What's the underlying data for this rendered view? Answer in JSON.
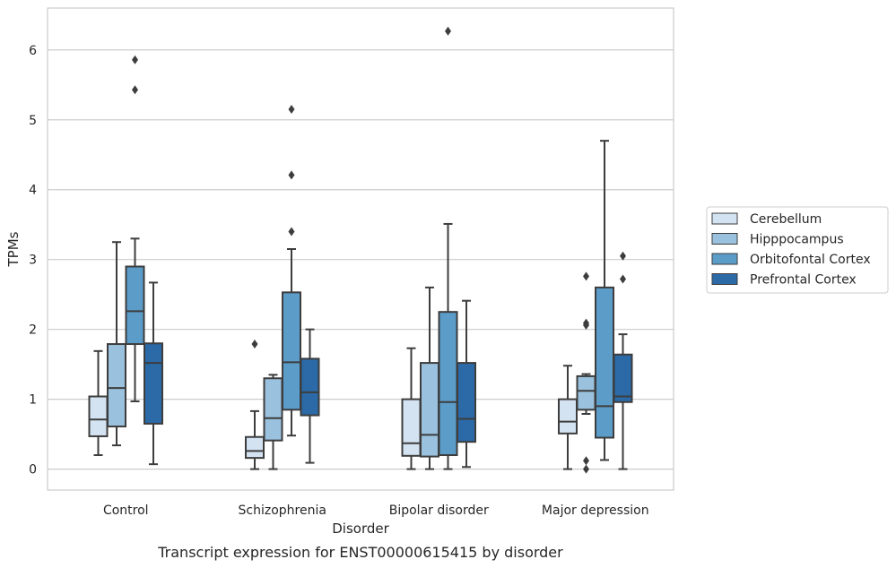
{
  "caption": "Transcript expression for ENST00000615415 by disorder",
  "chart_data": {
    "type": "box",
    "xlabel": "Disorder",
    "ylabel": "TPMs",
    "ylim": [
      -0.3,
      6.6
    ],
    "yticks": [
      0,
      1,
      2,
      3,
      4,
      5,
      6
    ],
    "grid": "horizontal",
    "legend_position": "right",
    "categories": [
      "Control",
      "Schizophrenia",
      "Bipolar disorder",
      "Major depression"
    ],
    "series": [
      {
        "name": "Cerebellum",
        "color": "#d4e3f2",
        "boxes": [
          {
            "min": 0.2,
            "q1": 0.47,
            "median": 0.71,
            "q3": 1.04,
            "max": 1.69,
            "outliers": []
          },
          {
            "min": 0.0,
            "q1": 0.16,
            "median": 0.26,
            "q3": 0.46,
            "max": 0.83,
            "outliers": [
              1.79
            ]
          },
          {
            "min": 0.0,
            "q1": 0.19,
            "median": 0.37,
            "q3": 1.0,
            "max": 1.73,
            "outliers": []
          },
          {
            "min": 0.0,
            "q1": 0.51,
            "median": 0.68,
            "q3": 1.0,
            "max": 1.48,
            "outliers": []
          }
        ]
      },
      {
        "name": "Hipppocampus",
        "color": "#9ac1dd",
        "boxes": [
          {
            "min": 0.34,
            "q1": 0.61,
            "median": 1.16,
            "q3": 1.79,
            "max": 3.25,
            "outliers": []
          },
          {
            "min": 0.0,
            "q1": 0.41,
            "median": 0.73,
            "q3": 1.3,
            "max": 1.35,
            "outliers": []
          },
          {
            "min": 0.0,
            "q1": 0.18,
            "median": 0.49,
            "q3": 1.52,
            "max": 2.6,
            "outliers": []
          },
          {
            "min": 0.79,
            "q1": 0.85,
            "median": 1.12,
            "q3": 1.33,
            "max": 1.36,
            "outliers": [
              2.76,
              2.09,
              2.06,
              0.12,
              0.0
            ]
          }
        ]
      },
      {
        "name": "Orbitofontal Cortex",
        "color": "#5b9cc9",
        "boxes": [
          {
            "min": 0.97,
            "q1": 1.79,
            "median": 2.26,
            "q3": 2.9,
            "max": 3.3,
            "outliers": [
              5.86,
              5.43
            ]
          },
          {
            "min": 0.48,
            "q1": 0.85,
            "median": 1.53,
            "q3": 2.53,
            "max": 3.15,
            "outliers": [
              5.15,
              4.21,
              3.4
            ]
          },
          {
            "min": 0.0,
            "q1": 0.2,
            "median": 0.96,
            "q3": 2.25,
            "max": 3.51,
            "outliers": [
              6.27
            ]
          },
          {
            "min": 0.13,
            "q1": 0.45,
            "median": 0.9,
            "q3": 2.6,
            "max": 4.7,
            "outliers": []
          }
        ]
      },
      {
        "name": "Prefrontal Cortex",
        "color": "#2b6aa7",
        "boxes": [
          {
            "min": 0.07,
            "q1": 0.65,
            "median": 1.52,
            "q3": 1.8,
            "max": 2.67,
            "outliers": []
          },
          {
            "min": 0.09,
            "q1": 0.77,
            "median": 1.1,
            "q3": 1.58,
            "max": 2.0,
            "outliers": []
          },
          {
            "min": 0.03,
            "q1": 0.39,
            "median": 0.72,
            "q3": 1.52,
            "max": 2.41,
            "outliers": []
          },
          {
            "min": 0.0,
            "q1": 0.96,
            "median": 1.04,
            "q3": 1.64,
            "max": 1.93,
            "outliers": [
              3.05,
              2.72
            ]
          }
        ]
      }
    ]
  }
}
